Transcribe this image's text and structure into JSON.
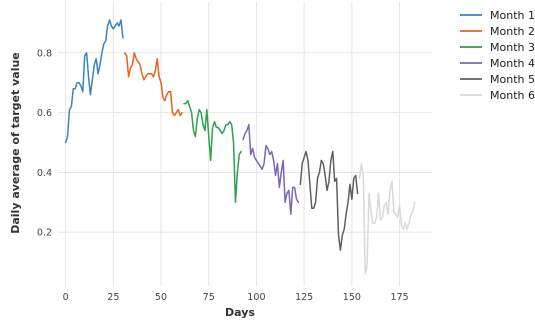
{
  "chart_data": {
    "type": "line",
    "xlabel": "Days",
    "ylabel": "Daily average of target value",
    "xlim": [
      -4,
      192
    ],
    "ylim": [
      0.02,
      0.97
    ],
    "xticks": [
      0,
      25,
      50,
      75,
      100,
      125,
      150,
      175
    ],
    "yticks": [
      0.2,
      0.4,
      0.6,
      0.8
    ],
    "ytick_labels": [
      "0.2",
      "0.4",
      "0.6",
      "0.8"
    ],
    "grid": true,
    "legend_position": "outside-right",
    "series": [
      {
        "name": "Month 1",
        "color": "#3a85c0",
        "x": [
          0,
          1,
          2,
          3,
          4,
          5,
          6,
          7,
          8,
          9,
          10,
          11,
          12,
          13,
          14,
          15,
          16,
          17,
          18,
          19,
          20,
          21,
          22,
          23,
          24,
          25,
          26,
          27,
          28,
          29,
          30
        ],
        "y": [
          0.5,
          0.52,
          0.61,
          0.62,
          0.68,
          0.68,
          0.7,
          0.7,
          0.69,
          0.67,
          0.79,
          0.8,
          0.72,
          0.66,
          0.71,
          0.76,
          0.78,
          0.73,
          0.76,
          0.8,
          0.83,
          0.84,
          0.89,
          0.91,
          0.89,
          0.88,
          0.89,
          0.9,
          0.89,
          0.91,
          0.85
        ]
      },
      {
        "name": "Month 2",
        "color": "#e8621d",
        "x": [
          31,
          32,
          33,
          34,
          35,
          36,
          37,
          38,
          39,
          40,
          41,
          42,
          43,
          44,
          45,
          46,
          47,
          48,
          49,
          50,
          51,
          52,
          53,
          54,
          55,
          56,
          57,
          58,
          59,
          60,
          61
        ],
        "y": [
          0.8,
          0.79,
          0.72,
          0.75,
          0.76,
          0.8,
          0.78,
          0.77,
          0.76,
          0.73,
          0.71,
          0.72,
          0.73,
          0.73,
          0.73,
          0.72,
          0.74,
          0.78,
          0.72,
          0.7,
          0.65,
          0.64,
          0.66,
          0.67,
          0.67,
          0.6,
          0.59,
          0.6,
          0.61,
          0.59,
          0.6
        ]
      },
      {
        "name": "Month 3",
        "color": "#2ea04f",
        "x": [
          62,
          63,
          64,
          65,
          66,
          67,
          68,
          69,
          70,
          71,
          72,
          73,
          74,
          75,
          76,
          77,
          78,
          79,
          80,
          81,
          82,
          83,
          84,
          85,
          86,
          87,
          88,
          89,
          90,
          91,
          92
        ],
        "y": [
          0.63,
          0.63,
          0.64,
          0.62,
          0.6,
          0.54,
          0.52,
          0.58,
          0.61,
          0.6,
          0.56,
          0.54,
          0.61,
          0.52,
          0.44,
          0.55,
          0.57,
          0.55,
          0.55,
          0.54,
          0.53,
          0.54,
          0.56,
          0.56,
          0.57,
          0.56,
          0.5,
          0.3,
          0.4,
          0.46,
          0.47
        ]
      },
      {
        "name": "Month 4",
        "color": "#7b67b4",
        "x": [
          93,
          94,
          95,
          96,
          97,
          98,
          99,
          100,
          101,
          102,
          103,
          104,
          105,
          106,
          107,
          108,
          109,
          110,
          111,
          112,
          113,
          114,
          115,
          116,
          117,
          118,
          119,
          120,
          121,
          122
        ],
        "y": [
          0.51,
          0.53,
          0.54,
          0.56,
          0.46,
          0.48,
          0.45,
          0.44,
          0.43,
          0.42,
          0.41,
          0.43,
          0.49,
          0.48,
          0.46,
          0.47,
          0.44,
          0.39,
          0.43,
          0.35,
          0.4,
          0.44,
          0.3,
          0.33,
          0.34,
          0.26,
          0.35,
          0.35,
          0.31,
          0.3
        ]
      },
      {
        "name": "Month 5",
        "color": "#5f5f5f",
        "x": [
          123,
          124,
          125,
          126,
          127,
          128,
          129,
          130,
          131,
          132,
          133,
          134,
          135,
          136,
          137,
          138,
          139,
          140,
          141,
          142,
          143,
          144,
          145,
          146,
          147,
          148,
          149,
          150,
          151,
          152,
          153
        ],
        "y": [
          0.36,
          0.43,
          0.45,
          0.47,
          0.44,
          0.36,
          0.28,
          0.28,
          0.3,
          0.38,
          0.4,
          0.44,
          0.43,
          0.39,
          0.34,
          0.37,
          0.44,
          0.47,
          0.37,
          0.38,
          0.19,
          0.14,
          0.19,
          0.21,
          0.26,
          0.3,
          0.36,
          0.31,
          0.38,
          0.39,
          0.33
        ]
      },
      {
        "name": "Month 6",
        "color": "#d9d9d9",
        "x": [
          154,
          155,
          156,
          157,
          158,
          159,
          160,
          161,
          162,
          163,
          164,
          165,
          166,
          167,
          168,
          169,
          170,
          171,
          172,
          173,
          174,
          175,
          176,
          177,
          178,
          179,
          180,
          181,
          182,
          183
        ],
        "y": [
          0.38,
          0.43,
          0.39,
          0.06,
          0.09,
          0.33,
          0.27,
          0.23,
          0.23,
          0.25,
          0.33,
          0.24,
          0.25,
          0.29,
          0.3,
          0.26,
          0.34,
          0.37,
          0.27,
          0.26,
          0.25,
          0.29,
          0.22,
          0.21,
          0.23,
          0.21,
          0.23,
          0.26,
          0.27,
          0.3
        ]
      }
    ]
  }
}
